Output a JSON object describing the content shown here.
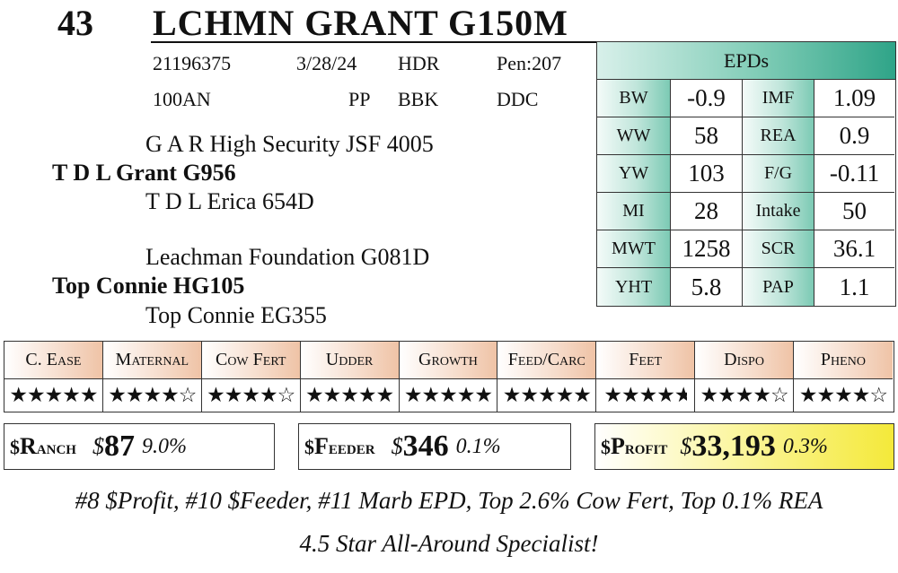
{
  "header": {
    "lot_number": "43",
    "animal_name": "LCHMN GRANT G150M"
  },
  "info": {
    "row1": [
      "21196375",
      "3/28/24",
      "HDR",
      "Pen:207"
    ],
    "row2": [
      "100AN",
      "PP",
      "BBK",
      "DDC"
    ]
  },
  "pedigree": {
    "sire_sire": "G A R High Security JSF 4005",
    "sire": "T D L Grant G956",
    "sire_dam": "T D L Erica 654D",
    "dam_sire": "Leachman Foundation G081D",
    "dam": "Top Connie HG105",
    "dam_dam": "Top Connie EG355"
  },
  "epds": {
    "title": "EPDs",
    "rows": [
      {
        "l1": "BW",
        "v1": "-0.9",
        "l2": "IMF",
        "v2": "1.09"
      },
      {
        "l1": "WW",
        "v1": "58",
        "l2": "REA",
        "v2": "0.9"
      },
      {
        "l1": "YW",
        "v1": "103",
        "l2": "F/G",
        "v2": "-0.11"
      },
      {
        "l1": "MI",
        "v1": "28",
        "l2": "Intake",
        "v2": "50"
      },
      {
        "l1": "MWT",
        "v1": "1258",
        "l2": "SCR",
        "v2": "36.1"
      },
      {
        "l1": "YHT",
        "v1": "5.8",
        "l2": "PAP",
        "v2": "1.1"
      }
    ]
  },
  "traits": [
    {
      "label": "C. Ease",
      "rating": 5
    },
    {
      "label": "Maternal",
      "rating": 4
    },
    {
      "label": "Cow Fert",
      "rating": 4
    },
    {
      "label": "Udder",
      "rating": 5
    },
    {
      "label": "Growth",
      "rating": 5
    },
    {
      "label": "Feed/Carc",
      "rating": 5
    },
    {
      "label": "Feet",
      "rating": 4.5
    },
    {
      "label": "Dispo",
      "rating": 4
    },
    {
      "label": "Pheno",
      "rating": 4
    }
  ],
  "indexes": {
    "ranch": {
      "prefix": "$",
      "initial": "R",
      "rest": "anch",
      "dollar": "$",
      "value": "87",
      "pct": "9.0%"
    },
    "feeder": {
      "prefix": "$",
      "initial": "F",
      "rest": "eeder",
      "dollar": "$",
      "value": "346",
      "pct": "0.1%"
    },
    "profit": {
      "prefix": "$",
      "initial": "P",
      "rest": "rofit",
      "dollar": "$",
      "value": "33,193",
      "pct": "0.3%"
    }
  },
  "footer": {
    "line1": "#8 $Profit, #10 $Feeder, #11 Marb EPD, Top 2.6% Cow Fert, Top 0.1% REA",
    "line2": "4.5 Star All-Around Specialist!"
  },
  "colors": {
    "epd_accent": "#2fa488",
    "trait_accent": "#efc3a6",
    "profit_highlight": "#f4e93a"
  }
}
